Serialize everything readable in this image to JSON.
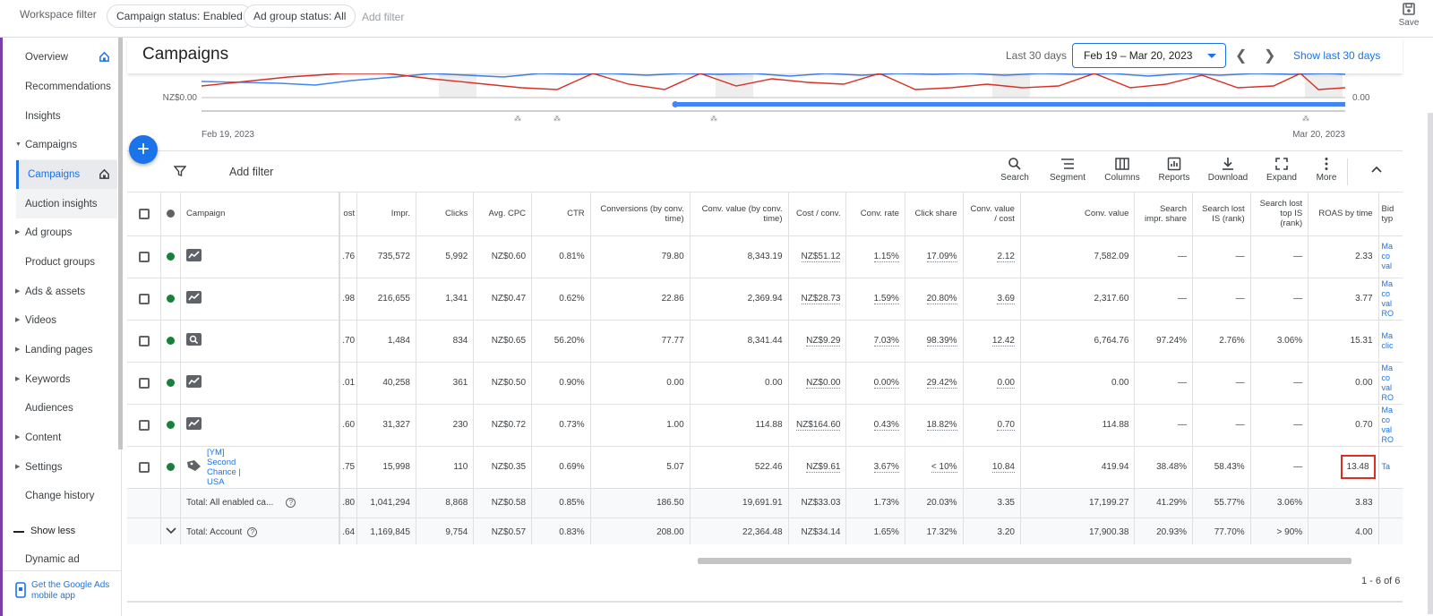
{
  "topbar": {
    "workspace_filter": "Workspace filter",
    "chips": [
      "Campaign status: Enabled",
      "Ad group status: All"
    ],
    "add_filter": "Add filter",
    "save": "Save"
  },
  "sidebar": {
    "items": [
      {
        "label": "Overview",
        "home": true
      },
      {
        "label": "Recommendations"
      },
      {
        "label": "Insights"
      },
      {
        "label": "Campaigns",
        "expanded": true
      },
      {
        "label": "Campaigns",
        "active": true,
        "home": true
      },
      {
        "label": "Auction insights"
      },
      {
        "label": "Ad groups",
        "collapsed": true
      },
      {
        "label": "Product groups"
      },
      {
        "label": "Ads & assets",
        "collapsed": true
      },
      {
        "label": "Videos",
        "collapsed": true
      },
      {
        "label": "Landing pages",
        "collapsed": true
      },
      {
        "label": "Keywords",
        "collapsed": true
      },
      {
        "label": "Audiences"
      },
      {
        "label": "Content",
        "collapsed": true
      },
      {
        "label": "Settings",
        "collapsed": true
      },
      {
        "label": "Change history"
      }
    ],
    "show_less": "Show less",
    "dynamic_ad": "Dynamic ad",
    "mobile_app": "Get the Google Ads mobile app"
  },
  "header": {
    "title": "Campaigns",
    "range_label": "Last 30 days",
    "date_range": "Feb 19 – Mar 20, 2023",
    "show_last": "Show last 30 days"
  },
  "chart": {
    "y_left": "NZ$0.00",
    "y_right": "0.00",
    "x_start": "Feb 19, 2023",
    "x_end": "Mar 20, 2023",
    "colors": {
      "series_a": "#4285f4",
      "series_b": "#d93025"
    }
  },
  "toolbar": {
    "add_filter": "Add filter",
    "buttons": [
      "Search",
      "Segment",
      "Columns",
      "Reports",
      "Download",
      "Expand",
      "More"
    ]
  },
  "table": {
    "headers": {
      "campaign": "Campaign",
      "cost": "ost",
      "impr": "Impr.",
      "clicks": "Clicks",
      "avg_cpc": "Avg. CPC",
      "ctr": "CTR",
      "conv_time": "Conversions (by conv. time)",
      "conv_value_time": "Conv. value (by conv. time)",
      "cost_conv": "Cost / conv.",
      "conv_rate": "Conv. rate",
      "click_share": "Click share",
      "cv_cost": "Conv. value / cost",
      "conv_value": "Conv. value",
      "search_impr_share": "Search impr. share",
      "search_lost_rank": "Search lost IS (rank)",
      "search_lost_top": "Search lost top IS (rank)",
      "roas_time": "ROAS by time",
      "bid_type": "Bid typ"
    },
    "rows": [
      {
        "type": "display",
        "name": "",
        "cost": ".76",
        "impr": "735,572",
        "clicks": "5,992",
        "avg_cpc": "NZ$0.60",
        "ctr": "0.81%",
        "conv_time": "79.80",
        "conv_value_time": "8,343.19",
        "cost_conv": "NZ$51.12",
        "conv_rate": "1.15%",
        "click_share": "17.09%",
        "cv_cost": "2.12",
        "conv_value": "7,582.09",
        "search_impr_share": "—",
        "search_lost_rank": "—",
        "search_lost_top": "—",
        "roas_time": "2.33",
        "bid": "Ma co val"
      },
      {
        "type": "display",
        "name": "",
        "cost": ".98",
        "impr": "216,655",
        "clicks": "1,341",
        "avg_cpc": "NZ$0.47",
        "ctr": "0.62%",
        "conv_time": "22.86",
        "conv_value_time": "2,369.94",
        "cost_conv": "NZ$28.73",
        "conv_rate": "1.59%",
        "click_share": "20.80%",
        "cv_cost": "3.69",
        "conv_value": "2,317.60",
        "search_impr_share": "—",
        "search_lost_rank": "—",
        "search_lost_top": "—",
        "roas_time": "3.77",
        "bid": "Ma co val RO"
      },
      {
        "type": "search",
        "name": "",
        "cost": ".70",
        "impr": "1,484",
        "clicks": "834",
        "avg_cpc": "NZ$0.65",
        "ctr": "56.20%",
        "conv_time": "77.77",
        "conv_value_time": "8,341.44",
        "cost_conv": "NZ$9.29",
        "conv_rate": "7.03%",
        "click_share": "98.39%",
        "cv_cost": "12.42",
        "conv_value": "6,764.76",
        "search_impr_share": "97.24%",
        "search_lost_rank": "2.76%",
        "search_lost_top": "3.06%",
        "roas_time": "15.31",
        "bid": "Ma clic"
      },
      {
        "type": "display",
        "name": "",
        "cost": ".01",
        "impr": "40,258",
        "clicks": "361",
        "avg_cpc": "NZ$0.50",
        "ctr": "0.90%",
        "conv_time": "0.00",
        "conv_value_time": "0.00",
        "cost_conv": "NZ$0.00",
        "conv_rate": "0.00%",
        "click_share": "29.42%",
        "cv_cost": "0.00",
        "conv_value": "0.00",
        "search_impr_share": "—",
        "search_lost_rank": "—",
        "search_lost_top": "—",
        "roas_time": "0.00",
        "bid": "Ma co val RO"
      },
      {
        "type": "display",
        "name": "",
        "cost": ".60",
        "impr": "31,327",
        "clicks": "230",
        "avg_cpc": "NZ$0.72",
        "ctr": "0.73%",
        "conv_time": "1.00",
        "conv_value_time": "114.88",
        "cost_conv": "NZ$164.60",
        "conv_rate": "0.43%",
        "click_share": "18.82%",
        "cv_cost": "0.70",
        "conv_value": "114.88",
        "search_impr_share": "—",
        "search_lost_rank": "—",
        "search_lost_top": "—",
        "roas_time": "0.70",
        "bid": "Ma co val RO"
      },
      {
        "type": "shopping",
        "name": "[YM] Second Chance | USA",
        "cost": ".75",
        "impr": "15,998",
        "clicks": "110",
        "avg_cpc": "NZ$0.35",
        "ctr": "0.69%",
        "conv_time": "5.07",
        "conv_value_time": "522.46",
        "cost_conv": "NZ$9.61",
        "conv_rate": "3.67%",
        "click_share": "< 10%",
        "cv_cost": "10.84",
        "conv_value": "419.94",
        "search_impr_share": "38.48%",
        "search_lost_rank": "58.43%",
        "search_lost_top": "—",
        "roas_time": "13.48",
        "bid": "Ta"
      }
    ],
    "totals": [
      {
        "label": "Total: All enabled ca...",
        "cost": ".80",
        "impr": "1,041,294",
        "clicks": "8,868",
        "avg_cpc": "NZ$0.58",
        "ctr": "0.85%",
        "conv_time": "186.50",
        "conv_value_time": "19,691.91",
        "cost_conv": "NZ$33.03",
        "conv_rate": "1.73%",
        "click_share": "20.03%",
        "cv_cost": "3.35",
        "conv_value": "17,199.27",
        "search_impr_share": "41.29%",
        "search_lost_rank": "55.77%",
        "search_lost_top": "3.06%",
        "roas_time": "3.83"
      },
      {
        "label": "Total: Account",
        "cost": ".64",
        "impr": "1,169,845",
        "clicks": "9,754",
        "avg_cpc": "NZ$0.57",
        "ctr": "0.83%",
        "conv_time": "208.00",
        "conv_value_time": "22,364.48",
        "cost_conv": "NZ$34.14",
        "conv_rate": "1.65%",
        "click_share": "17.32%",
        "cv_cost": "3.20",
        "conv_value": "17,900.38",
        "search_impr_share": "20.93%",
        "search_lost_rank": "77.70%",
        "search_lost_top": "> 90%",
        "roas_time": "4.00"
      }
    ],
    "pagination": "1 - 6 of 6"
  }
}
